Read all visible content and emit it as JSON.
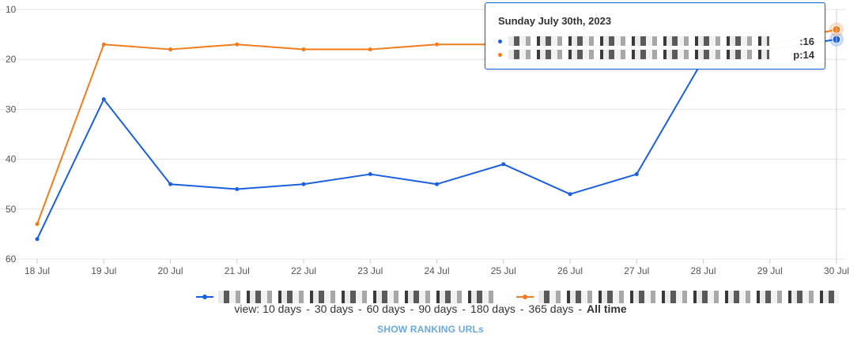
{
  "chart_data": {
    "type": "line",
    "categories": [
      "18 Jul",
      "19 Jul",
      "20 Jul",
      "21 Jul",
      "22 Jul",
      "23 Jul",
      "24 Jul",
      "25 Jul",
      "26 Jul",
      "27 Jul",
      "28 Jul",
      "29 Jul",
      "30 Jul"
    ],
    "y_tick_labels": [
      "10",
      "20",
      "30",
      "40",
      "50",
      "60"
    ],
    "ylim": [
      10,
      60
    ],
    "y_reversed": true,
    "grid": true,
    "legend_position": "bottom",
    "series": [
      {
        "color": "#1a5fe0",
        "values": [
          56,
          28,
          45,
          46,
          45,
          43,
          45,
          41,
          47,
          43,
          20,
          18,
          16
        ]
      },
      {
        "color": "#f07c1e",
        "values": [
          53,
          17,
          18,
          17,
          18,
          18,
          17,
          17,
          17,
          17,
          17,
          17,
          14
        ]
      }
    ]
  },
  "tooltip": {
    "title": "Sunday July 30th, 2023",
    "rows": [
      {
        "value": ":16",
        "color": "#1a5fe0"
      },
      {
        "value": "p:14",
        "color": "#f07c1e"
      }
    ]
  },
  "view_bar": {
    "prefix": "view:",
    "options": [
      "10 days",
      "30 days",
      "60 days",
      "90 days",
      "180 days",
      "365 days",
      "All time"
    ],
    "separator": "-",
    "active": "All time"
  },
  "show_urls_label": "SHOW RANKING URLs"
}
